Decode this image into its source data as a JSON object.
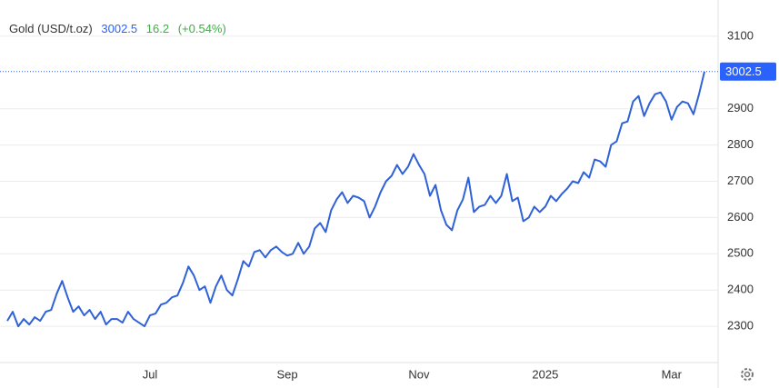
{
  "chart_data": {
    "type": "line",
    "title": "Gold (USD/t.oz)",
    "price": 3002.5,
    "change": 16.2,
    "change_pct": "(+0.54%)",
    "categories": [
      null,
      null,
      null,
      null,
      null,
      null,
      null,
      null,
      null,
      null,
      null,
      null,
      null,
      null,
      null,
      null,
      null,
      null,
      null,
      null,
      null,
      null,
      null,
      null,
      null,
      null,
      "Jul",
      null,
      null,
      null,
      null,
      null,
      null,
      null,
      null,
      null,
      null,
      null,
      null,
      null,
      null,
      null,
      null,
      null,
      null,
      null,
      null,
      null,
      null,
      null,
      null,
      "Sep",
      null,
      null,
      null,
      null,
      null,
      null,
      null,
      null,
      null,
      null,
      null,
      null,
      null,
      null,
      null,
      null,
      null,
      null,
      null,
      null,
      null,
      null,
      null,
      "Nov",
      null,
      null,
      null,
      null,
      null,
      null,
      null,
      null,
      null,
      null,
      null,
      null,
      null,
      null,
      null,
      null,
      null,
      null,
      null,
      null,
      null,
      null,
      "2025",
      null,
      null,
      null,
      null,
      null,
      null,
      null,
      null,
      null,
      null,
      null,
      null,
      null,
      null,
      null,
      null,
      null,
      null,
      null,
      null,
      null,
      null,
      "Mar",
      null,
      null,
      null,
      null,
      null,
      null
    ],
    "series": [
      {
        "name": "Gold",
        "color": "#2f62d8",
        "values": [
          2315,
          2340,
          2300,
          2320,
          2305,
          2325,
          2315,
          2340,
          2345,
          2390,
          2425,
          2380,
          2340,
          2355,
          2330,
          2345,
          2320,
          2340,
          2305,
          2320,
          2320,
          2310,
          2340,
          2320,
          2310,
          2300,
          2330,
          2335,
          2360,
          2365,
          2380,
          2385,
          2420,
          2465,
          2440,
          2400,
          2410,
          2365,
          2410,
          2440,
          2400,
          2385,
          2430,
          2480,
          2465,
          2505,
          2510,
          2490,
          2510,
          2520,
          2505,
          2495,
          2500,
          2530,
          2500,
          2520,
          2570,
          2585,
          2560,
          2620,
          2650,
          2670,
          2640,
          2660,
          2655,
          2645,
          2600,
          2630,
          2670,
          2700,
          2715,
          2745,
          2720,
          2740,
          2775,
          2745,
          2720,
          2660,
          2690,
          2620,
          2580,
          2565,
          2620,
          2650,
          2710,
          2615,
          2630,
          2635,
          2660,
          2640,
          2660,
          2720,
          2645,
          2655,
          2590,
          2600,
          2630,
          2615,
          2630,
          2660,
          2645,
          2665,
          2680,
          2700,
          2695,
          2725,
          2710,
          2760,
          2755,
          2740,
          2800,
          2810,
          2860,
          2865,
          2920,
          2935,
          2880,
          2915,
          2940,
          2945,
          2920,
          2870,
          2905,
          2920,
          2915,
          2885,
          2940,
          3002.5
        ]
      }
    ],
    "ylim": [
      2200,
      3200
    ],
    "yticks": [
      2300,
      2400,
      2500,
      2600,
      2700,
      2800,
      2900,
      3100
    ],
    "grid": true
  }
}
